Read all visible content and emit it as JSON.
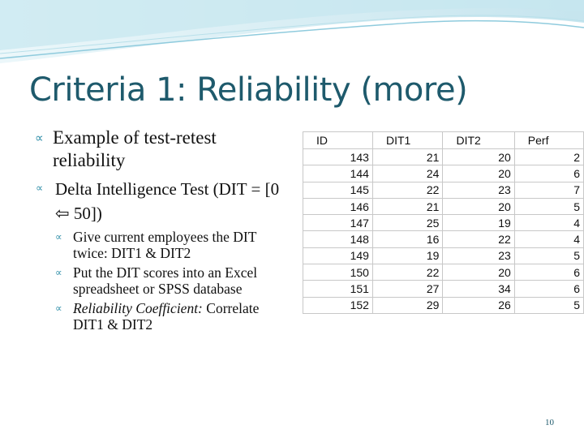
{
  "title": "Criteria 1: Reliability (more)",
  "bullets": [
    {
      "text": "Example of test-retest reliability",
      "children": [
        {
          "text": "Delta Intelligence Test (DIT = [0 ⇦ 50])",
          "children": [
            {
              "text": "Give current employees the DIT twice: DIT1 & DIT2"
            },
            {
              "text": "Put the DIT scores into an Excel spreadsheet or SPSS database"
            },
            {
              "emphasis": "Reliability Coefficient:",
              "text": "Correlate DIT1 & DIT2"
            }
          ]
        }
      ]
    }
  ],
  "table": {
    "header": [
      "ID",
      "DIT1",
      "DIT2",
      "Perf"
    ],
    "rows": [
      [
        143,
        21,
        20,
        2
      ],
      [
        144,
        24,
        20,
        6
      ],
      [
        145,
        22,
        23,
        7
      ],
      [
        146,
        21,
        20,
        5
      ],
      [
        147,
        25,
        19,
        4
      ],
      [
        148,
        16,
        22,
        4
      ],
      [
        149,
        19,
        23,
        5
      ],
      [
        150,
        22,
        20,
        6
      ],
      [
        151,
        27,
        34,
        6
      ],
      [
        152,
        29,
        26,
        5
      ]
    ]
  },
  "page_number": "10"
}
